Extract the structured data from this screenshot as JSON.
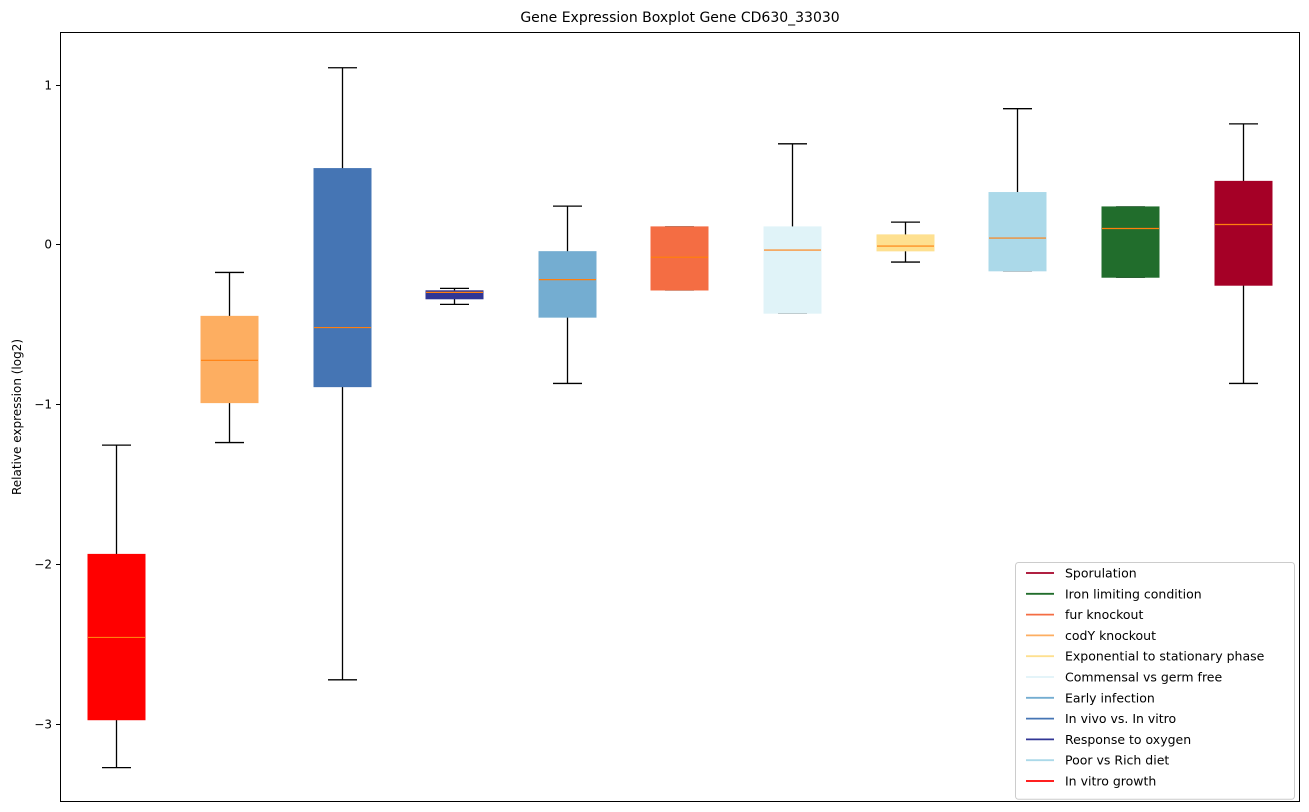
{
  "chart_data": {
    "type": "boxplot",
    "title": "Gene Expression Boxplot Gene CD630_33030",
    "xlabel": "",
    "ylabel": "Relative expression (log2)",
    "ylim": [
      -3.49,
      1.33
    ],
    "yticks": [
      1,
      0,
      -1,
      -2,
      -3
    ],
    "ytick_labels": [
      "1",
      "0",
      "−1",
      "−2",
      "−3"
    ],
    "grid": false,
    "legend_position": "bottom-right",
    "median_color": "#ff7f0e",
    "whisker_color": "#000000",
    "series": [
      {
        "name": "In vitro growth",
        "color": "#ff0000",
        "whisker_low": -3.275,
        "q1": -2.975,
        "median": -2.46,
        "q3": -1.94,
        "whisker_high": -1.256
      },
      {
        "name": "codY knockout",
        "color": "#fdae61",
        "whisker_low": -1.24,
        "q1": -0.99,
        "median": -0.725,
        "q3": -0.45,
        "whisker_high": -0.175
      },
      {
        "name": "In vivo vs. In vitro",
        "color": "#4575b4",
        "whisker_low": -2.725,
        "q1": -0.89,
        "median": -0.52,
        "q3": 0.475,
        "whisker_high": 1.106
      },
      {
        "name": "Response to oxygen",
        "color": "#313695",
        "whisker_low": -0.375,
        "q1": -0.34,
        "median": -0.3,
        "q3": -0.29,
        "whisker_high": -0.275
      },
      {
        "name": "Early infection",
        "color": "#74add1",
        "whisker_low": -0.87,
        "q1": -0.455,
        "median": -0.22,
        "q3": -0.045,
        "whisker_high": 0.24
      },
      {
        "name": "fur knockout",
        "color": "#f46d43",
        "whisker_low": -0.285,
        "q1": -0.285,
        "median": -0.08,
        "q3": 0.11,
        "whisker_high": 0.11
      },
      {
        "name": "Commensal vs germ free",
        "color": "#e0f3f8",
        "whisker_low": -0.43,
        "q1": -0.43,
        "median": -0.035,
        "q3": 0.11,
        "whisker_high": 0.63
      },
      {
        "name": "Exponential to stationary phase",
        "color": "#fee090",
        "whisker_low": -0.11,
        "q1": -0.04,
        "median": -0.01,
        "q3": 0.06,
        "whisker_high": 0.14
      },
      {
        "name": "Poor vs Rich diet",
        "color": "#abd9e9",
        "whisker_low": -0.165,
        "q1": -0.165,
        "median": 0.04,
        "q3": 0.325,
        "whisker_high": 0.85
      },
      {
        "name": "Iron limiting condition",
        "color": "#216d2c",
        "whisker_low": -0.205,
        "q1": -0.205,
        "median": 0.1,
        "q3": 0.235,
        "whisker_high": 0.235
      },
      {
        "name": "Sporulation",
        "color": "#a50026",
        "whisker_low": -0.87,
        "q1": -0.255,
        "median": 0.125,
        "q3": 0.395,
        "whisker_high": 0.755
      }
    ],
    "legend": [
      {
        "label": "Sporulation",
        "color": "#a50026"
      },
      {
        "label": "Iron limiting condition",
        "color": "#216d2c"
      },
      {
        "label": "fur knockout",
        "color": "#f46d43"
      },
      {
        "label": "codY knockout",
        "color": "#fdae61"
      },
      {
        "label": "Exponential to stationary phase",
        "color": "#fee090"
      },
      {
        "label": "Commensal vs germ free",
        "color": "#e0f3f8"
      },
      {
        "label": "Early infection",
        "color": "#74add1"
      },
      {
        "label": "In vivo vs. In vitro",
        "color": "#4575b4"
      },
      {
        "label": "Response to oxygen",
        "color": "#313695"
      },
      {
        "label": "Poor vs Rich diet",
        "color": "#abd9e9"
      },
      {
        "label": "In vitro growth",
        "color": "#ff0000"
      }
    ]
  }
}
